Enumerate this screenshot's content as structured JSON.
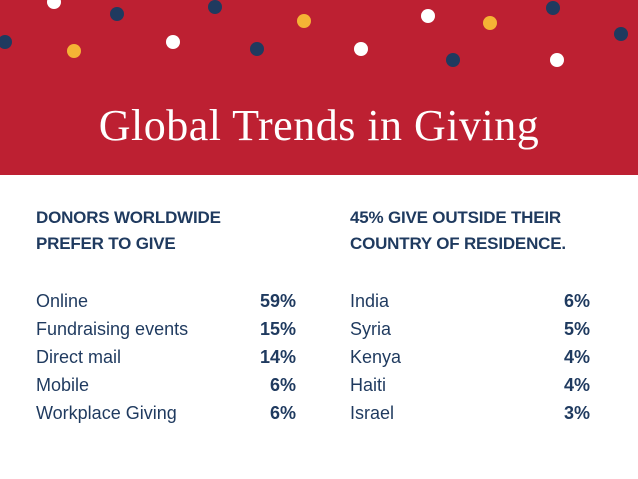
{
  "title": "Global Trends in Giving",
  "colors": {
    "banner": "#bd2032",
    "navy": "#1f3a5f",
    "gold": "#f5b335",
    "white": "#ffffff"
  },
  "left": {
    "heading_line1": "DONORS WORLDWIDE",
    "heading_line2": "PREFER TO GIVE",
    "items": [
      {
        "label": "Online",
        "value": "59%"
      },
      {
        "label": "Fundraising events",
        "value": "15%"
      },
      {
        "label": "Direct mail",
        "value": "14%"
      },
      {
        "label": "Mobile",
        "value": "6%"
      },
      {
        "label": "Workplace Giving",
        "value": "6%"
      }
    ]
  },
  "right": {
    "heading_line1": "45% GIVE OUTSIDE THEIR",
    "heading_line2": "COUNTRY OF RESIDENCE.",
    "items": [
      {
        "label": "India",
        "value": "6%"
      },
      {
        "label": "Syria",
        "value": "5%"
      },
      {
        "label": "Kenya",
        "value": "4%"
      },
      {
        "label": "Haiti",
        "value": "4%"
      },
      {
        "label": "Israel",
        "value": "3%"
      }
    ]
  }
}
